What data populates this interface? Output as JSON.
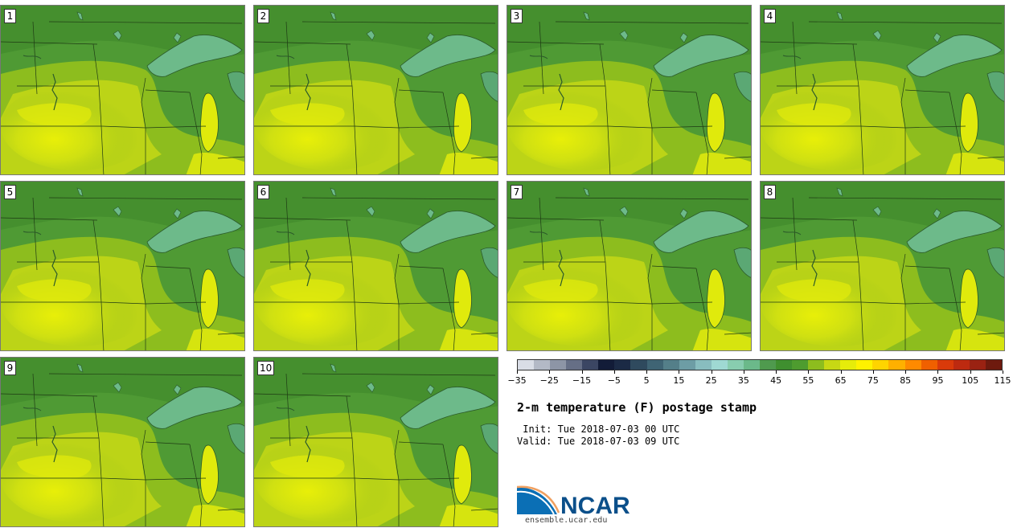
{
  "panels": [
    {
      "label": "1"
    },
    {
      "label": "2"
    },
    {
      "label": "3"
    },
    {
      "label": "4"
    },
    {
      "label": "5"
    },
    {
      "label": "6"
    },
    {
      "label": "7"
    },
    {
      "label": "8"
    },
    {
      "label": "9"
    },
    {
      "label": "10"
    }
  ],
  "colorbar": {
    "colors": [
      "#d9dde6",
      "#b3b9c6",
      "#8d95a6",
      "#666f86",
      "#3b4663",
      "#121c38",
      "#1b2a45",
      "#2f4a5e",
      "#3f6474",
      "#547f89",
      "#6d9da5",
      "#88bdbf",
      "#9fd9d3",
      "#88cdaf",
      "#6bb98a",
      "#4f9a4e",
      "#3f8f2f",
      "#4e9c2f",
      "#8dbd1e",
      "#c7d814",
      "#e6ec0a",
      "#fff200",
      "#ffd400",
      "#ffb000",
      "#ff8a00",
      "#f06000",
      "#d93a0a",
      "#bd2a10",
      "#9a2212",
      "#6e1a0e"
    ],
    "tick_labels": [
      "−35",
      "−25",
      "−15",
      "−5",
      "5",
      "15",
      "25",
      "35",
      "45",
      "55",
      "65",
      "75",
      "85",
      "95",
      "105",
      "115"
    ]
  },
  "title": "2-m temperature (F) postage stamp",
  "init": " Init: Tue 2018-07-03 00 UTC",
  "valid": "Valid: Tue 2018-07-03 09 UTC",
  "logo": {
    "text": "NCAR",
    "url": "ensemble.ucar.edu"
  }
}
